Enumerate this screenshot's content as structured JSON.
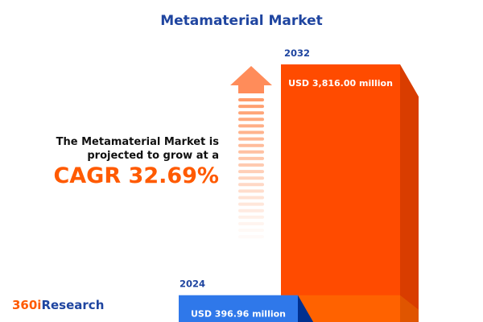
{
  "title": "Metamaterial Market",
  "lead_line1": "The Metamaterial Market is",
  "lead_line2": "projected to grow at a",
  "cagr": "CAGR 32.69%",
  "logo": {
    "prefix": "360i",
    "suffix": "Research"
  },
  "colors": {
    "bar_2024": "#2f78ea",
    "bar_2032": "#ff4b00",
    "title": "#1f45a0",
    "accent": "#ff5a00"
  },
  "chart_data": {
    "type": "bar",
    "categories": [
      "2024",
      "2032"
    ],
    "values": [
      396.96,
      3816.0
    ],
    "unit": "USD million",
    "data_labels": [
      "USD 396.96 million",
      "USD 3,816.00 million"
    ],
    "title": "Metamaterial Market"
  }
}
